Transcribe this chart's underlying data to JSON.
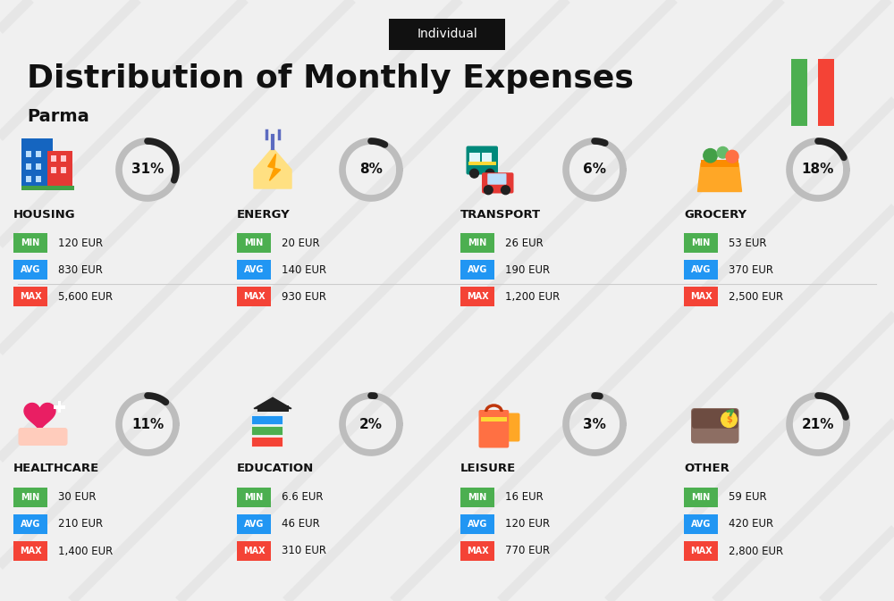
{
  "title": "Distribution of Monthly Expenses",
  "subtitle": "Parma",
  "tag": "Individual",
  "bg_color": "#f0f0f0",
  "categories": [
    {
      "name": "HOUSING",
      "pct": 31,
      "min": "120 EUR",
      "avg": "830 EUR",
      "max": "5,600 EUR",
      "icon_color": "#2196F3",
      "row": 0,
      "col": 0
    },
    {
      "name": "ENERGY",
      "pct": 8,
      "min": "20 EUR",
      "avg": "140 EUR",
      "max": "930 EUR",
      "icon_color": "#FFC107",
      "row": 0,
      "col": 1
    },
    {
      "name": "TRANSPORT",
      "pct": 6,
      "min": "26 EUR",
      "avg": "190 EUR",
      "max": "1,200 EUR",
      "icon_color": "#26A69A",
      "row": 0,
      "col": 2
    },
    {
      "name": "GROCERY",
      "pct": 18,
      "min": "53 EUR",
      "avg": "370 EUR",
      "max": "2,500 EUR",
      "icon_color": "#FF7043",
      "row": 0,
      "col": 3
    },
    {
      "name": "HEALTHCARE",
      "pct": 11,
      "min": "30 EUR",
      "avg": "210 EUR",
      "max": "1,400 EUR",
      "icon_color": "#E91E63",
      "row": 1,
      "col": 0
    },
    {
      "name": "EDUCATION",
      "pct": 2,
      "min": "6.6 EUR",
      "avg": "46 EUR",
      "max": "310 EUR",
      "icon_color": "#66BB6A",
      "row": 1,
      "col": 1
    },
    {
      "name": "LEISURE",
      "pct": 3,
      "min": "16 EUR",
      "avg": "120 EUR",
      "max": "770 EUR",
      "icon_color": "#FF7043",
      "row": 1,
      "col": 2
    },
    {
      "name": "OTHER",
      "pct": 21,
      "min": "59 EUR",
      "avg": "420 EUR",
      "max": "2,800 EUR",
      "icon_color": "#8D6E63",
      "row": 1,
      "col": 3
    }
  ],
  "min_color": "#4CAF50",
  "avg_color": "#2196F3",
  "max_color": "#F44336",
  "arc_color": "#212121",
  "arc_bg_color": "#BDBDBD",
  "italy_green": "#4CAF50",
  "italy_red": "#F44336"
}
